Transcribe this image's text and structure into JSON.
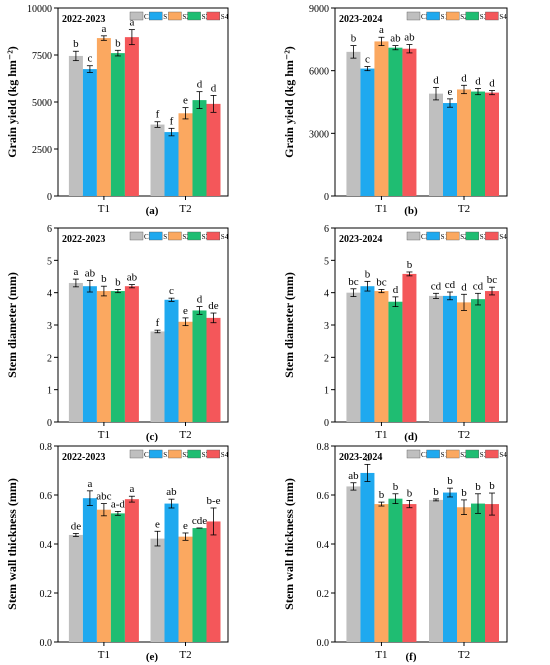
{
  "legend": {
    "labels": [
      "CK",
      "S1",
      "S2",
      "S3",
      "S4"
    ]
  },
  "colors": {
    "CK": "#bfbfbf",
    "S1": "#1fa9ef",
    "S2": "#fba860",
    "S3": "#1fbd72",
    "S4": "#f4575a"
  },
  "chart_data": [
    {
      "type": "bar",
      "panel": "(a)",
      "year": "2022-2023",
      "ylabel": "Grain yield (kg hm⁻²)",
      "yticks": [
        0,
        2500,
        5000,
        7500,
        10000
      ],
      "ylim": [
        0,
        10000
      ],
      "categories": [
        "T1",
        "T2"
      ],
      "series": [
        {
          "name": "CK",
          "values": [
            7450,
            3800
          ],
          "errors": [
            250,
            150
          ],
          "letters": [
            "b",
            "f"
          ]
        },
        {
          "name": "S1",
          "values": [
            6750,
            3400
          ],
          "errors": [
            180,
            200
          ],
          "letters": [
            "c",
            "f"
          ]
        },
        {
          "name": "S2",
          "values": [
            8400,
            4400
          ],
          "errors": [
            120,
            300
          ],
          "letters": [
            "a",
            "e"
          ]
        },
        {
          "name": "S3",
          "values": [
            7600,
            5100
          ],
          "errors": [
            150,
            450
          ],
          "letters": [
            "b",
            "d"
          ]
        },
        {
          "name": "S4",
          "values": [
            8450,
            4900
          ],
          "errors": [
            400,
            450
          ],
          "letters": [
            "a",
            "d"
          ]
        }
      ]
    },
    {
      "type": "bar",
      "panel": "(b)",
      "year": "2023-2024",
      "ylabel": "Grain yield (kg hm⁻²)",
      "yticks": [
        0,
        3000,
        6000,
        9000
      ],
      "ylim": [
        0,
        9000
      ],
      "categories": [
        "T1",
        "T2"
      ],
      "series": [
        {
          "name": "CK",
          "values": [
            6900,
            4900
          ],
          "errors": [
            300,
            300
          ],
          "letters": [
            "b",
            "d"
          ]
        },
        {
          "name": "S1",
          "values": [
            6100,
            4450
          ],
          "errors": [
            100,
            200
          ],
          "letters": [
            "c",
            "e"
          ]
        },
        {
          "name": "S2",
          "values": [
            7400,
            5100
          ],
          "errors": [
            200,
            200
          ],
          "letters": [
            "a",
            "d"
          ]
        },
        {
          "name": "S3",
          "values": [
            7100,
            5000
          ],
          "errors": [
            100,
            150
          ],
          "letters": [
            "ab",
            "d"
          ]
        },
        {
          "name": "S4",
          "values": [
            7050,
            4950
          ],
          "errors": [
            200,
            100
          ],
          "letters": [
            "ab",
            "d"
          ]
        }
      ]
    },
    {
      "type": "bar",
      "panel": "(c)",
      "year": "2022-2023",
      "ylabel": "Stem diameter (mm)",
      "yticks": [
        0,
        1,
        2,
        3,
        4,
        5,
        6
      ],
      "ylim": [
        0,
        6
      ],
      "categories": [
        "T1",
        "T2"
      ],
      "series": [
        {
          "name": "CK",
          "values": [
            4.3,
            2.8
          ],
          "errors": [
            0.12,
            0.04
          ],
          "letters": [
            "a",
            "f"
          ]
        },
        {
          "name": "S1",
          "values": [
            4.2,
            3.78
          ],
          "errors": [
            0.18,
            0.05
          ],
          "letters": [
            "ab",
            "c"
          ]
        },
        {
          "name": "S2",
          "values": [
            4.05,
            3.1
          ],
          "errors": [
            0.15,
            0.12
          ],
          "letters": [
            "b",
            "e"
          ]
        },
        {
          "name": "S3",
          "values": [
            4.05,
            3.45
          ],
          "errors": [
            0.05,
            0.12
          ],
          "letters": [
            "b",
            "d"
          ]
        },
        {
          "name": "S4",
          "values": [
            4.2,
            3.22
          ],
          "errors": [
            0.05,
            0.15
          ],
          "letters": [
            "ab",
            "de"
          ]
        }
      ]
    },
    {
      "type": "bar",
      "panel": "(d)",
      "year": "2023-2024",
      "ylabel": "Stem diameter (mm)",
      "yticks": [
        0,
        1,
        2,
        3,
        4,
        5,
        6
      ],
      "ylim": [
        0,
        6
      ],
      "categories": [
        "T1",
        "T2"
      ],
      "series": [
        {
          "name": "CK",
          "values": [
            4.0,
            3.9
          ],
          "errors": [
            0.12,
            0.08
          ],
          "letters": [
            "bc",
            "cd"
          ]
        },
        {
          "name": "S1",
          "values": [
            4.2,
            3.9
          ],
          "errors": [
            0.15,
            0.12
          ],
          "letters": [
            "b",
            "cd"
          ]
        },
        {
          "name": "S2",
          "values": [
            4.05,
            3.7
          ],
          "errors": [
            0.05,
            0.25
          ],
          "letters": [
            "bc",
            "d"
          ]
        },
        {
          "name": "S3",
          "values": [
            3.72,
            3.8
          ],
          "errors": [
            0.15,
            0.18
          ],
          "letters": [
            "d",
            "cd"
          ]
        },
        {
          "name": "S4",
          "values": [
            4.58,
            4.05
          ],
          "errors": [
            0.06,
            0.12
          ],
          "letters": [
            "b",
            "bc"
          ]
        }
      ]
    },
    {
      "type": "bar",
      "panel": "(e)",
      "year": "2022-2023",
      "ylabel": "Stem wall thickness (mm)",
      "yticks": [
        0.0,
        0.2,
        0.4,
        0.6,
        0.8
      ],
      "ylim": [
        0,
        0.8
      ],
      "categories": [
        "T1",
        "T2"
      ],
      "series": [
        {
          "name": "CK",
          "values": [
            0.437,
            0.422
          ],
          "errors": [
            0.006,
            0.03
          ],
          "letters": [
            "de",
            "e"
          ]
        },
        {
          "name": "S1",
          "values": [
            0.587,
            0.565
          ],
          "errors": [
            0.03,
            0.018
          ],
          "letters": [
            "a",
            "ab"
          ]
        },
        {
          "name": "S2",
          "values": [
            0.54,
            0.43
          ],
          "errors": [
            0.025,
            0.015
          ],
          "letters": [
            "abc",
            "e"
          ]
        },
        {
          "name": "S3",
          "values": [
            0.525,
            0.465
          ],
          "errors": [
            0.008,
            0.0
          ],
          "letters": [
            "a-d",
            "cde"
          ]
        },
        {
          "name": "S4",
          "values": [
            0.583,
            0.492
          ],
          "errors": [
            0.012,
            0.055
          ],
          "letters": [
            "a",
            "b-e"
          ]
        }
      ]
    },
    {
      "type": "bar",
      "panel": "(f)",
      "year": "2023-2024",
      "ylabel": "Stem wall thickness (mm)",
      "yticks": [
        0.0,
        0.2,
        0.4,
        0.6,
        0.8
      ],
      "ylim": [
        0,
        0.8
      ],
      "categories": [
        "T1",
        "T2"
      ],
      "series": [
        {
          "name": "CK",
          "values": [
            0.635,
            0.58
          ],
          "errors": [
            0.015,
            0.004
          ],
          "letters": [
            "ab",
            "b"
          ]
        },
        {
          "name": "S1",
          "values": [
            0.69,
            0.61
          ],
          "errors": [
            0.035,
            0.018
          ],
          "letters": [
            "a",
            "b"
          ]
        },
        {
          "name": "S2",
          "values": [
            0.563,
            0.55
          ],
          "errors": [
            0.008,
            0.03
          ],
          "letters": [
            "b",
            "b"
          ]
        },
        {
          "name": "S3",
          "values": [
            0.585,
            0.565
          ],
          "errors": [
            0.02,
            0.04
          ],
          "letters": [
            "b",
            "b"
          ]
        },
        {
          "name": "S4",
          "values": [
            0.563,
            0.563
          ],
          "errors": [
            0.015,
            0.045
          ],
          "letters": [
            "b",
            "b"
          ]
        }
      ]
    }
  ]
}
